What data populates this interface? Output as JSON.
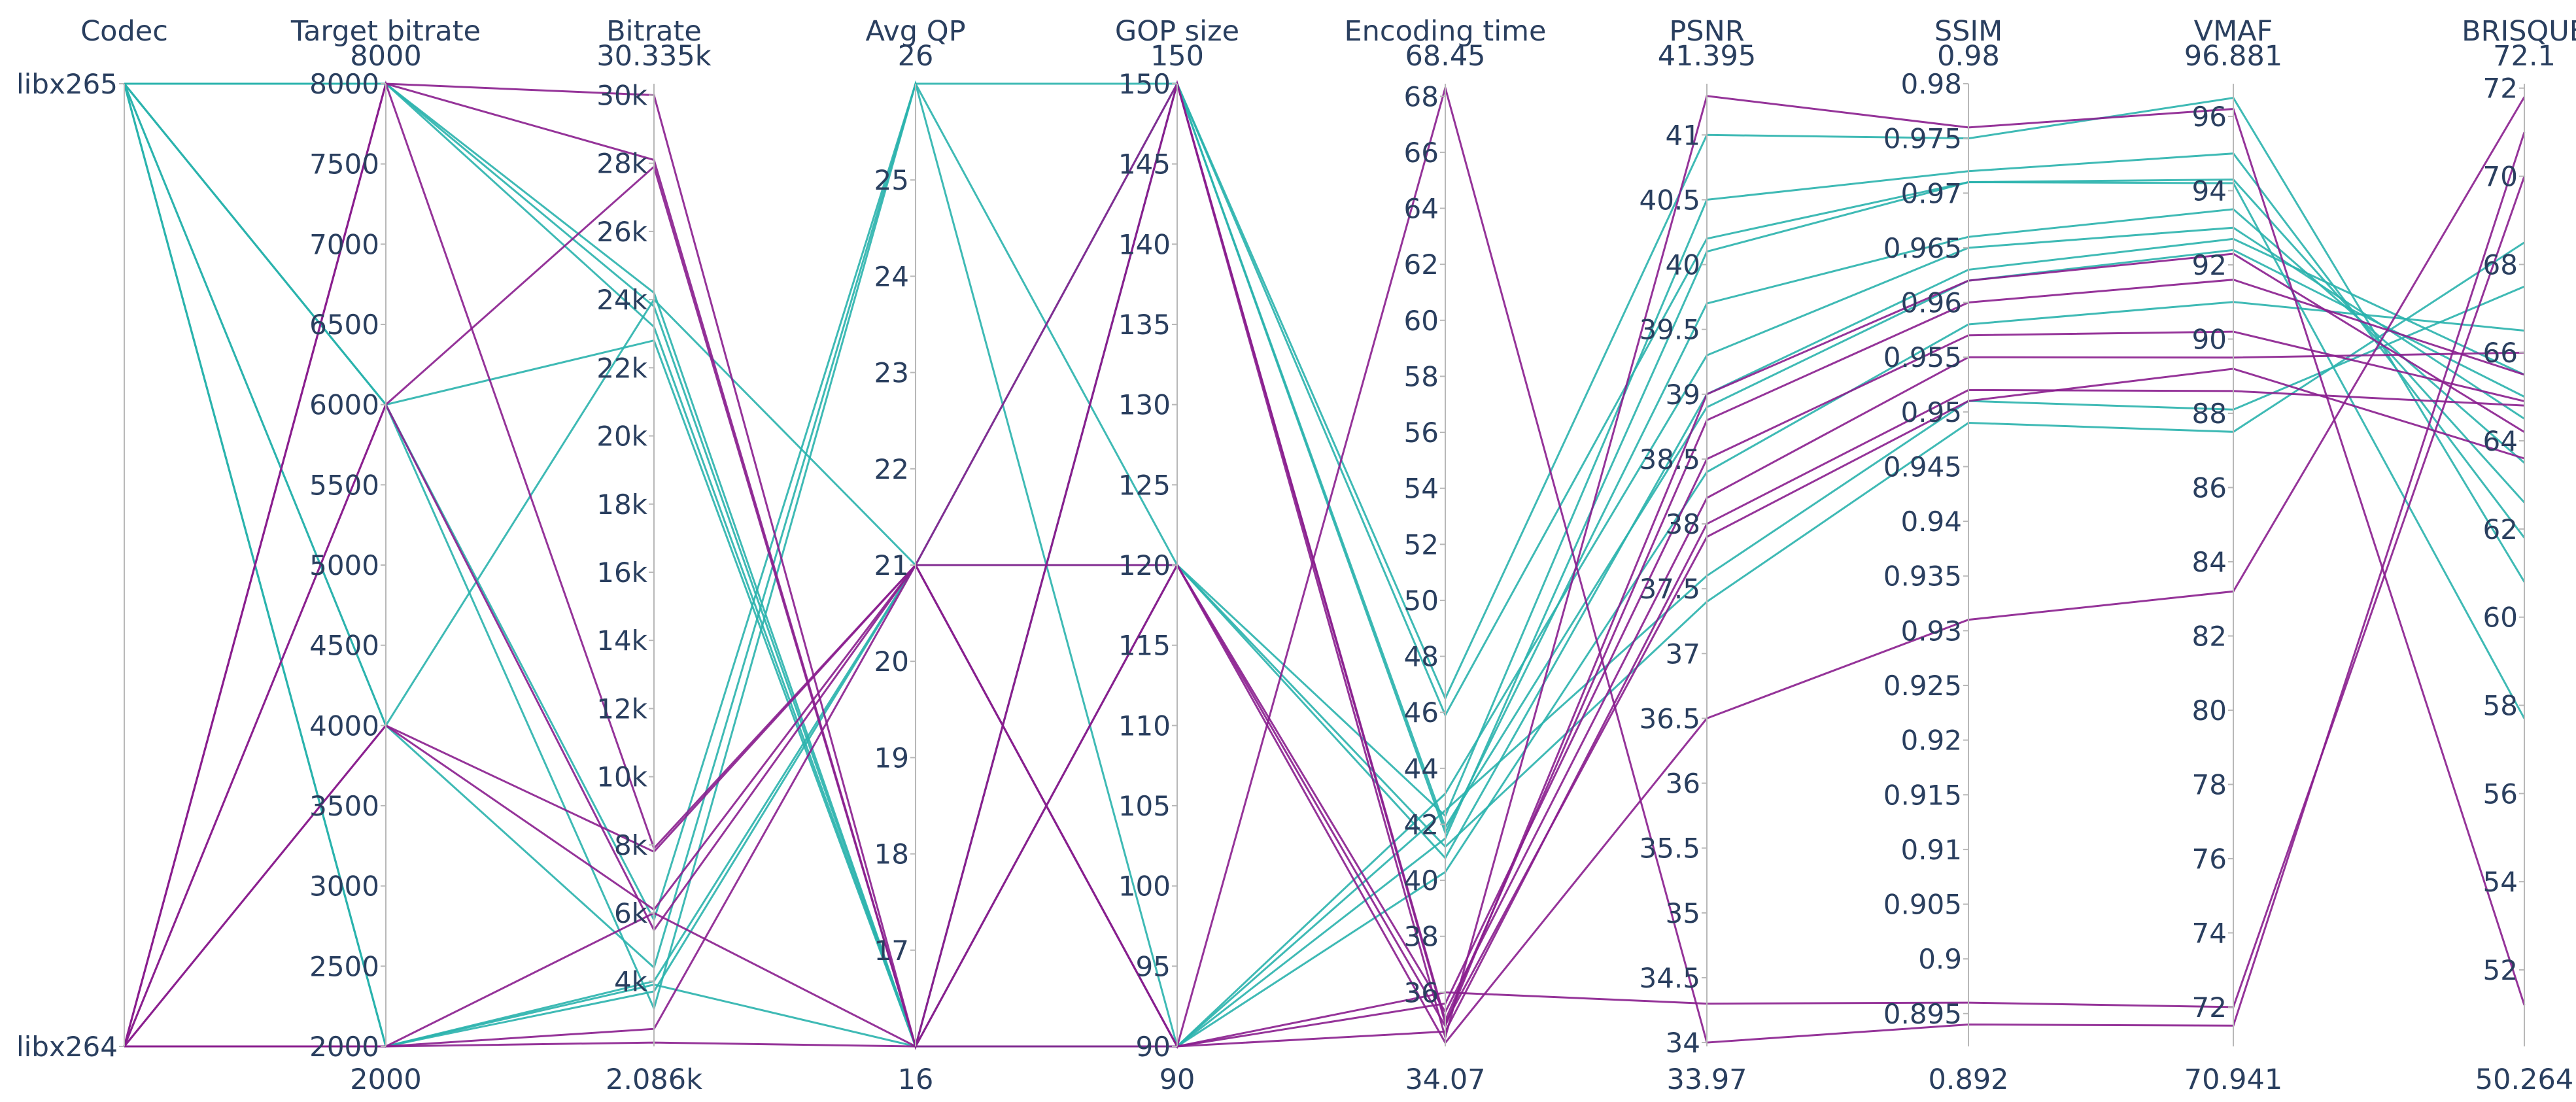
{
  "colors": {
    "libx265": "#2ab3ad",
    "libx264": "#8a1e8e",
    "axis": "#b8b8b8",
    "text": "#2a3f5f"
  },
  "chart_data": {
    "type": "parallel_coordinates",
    "title": "",
    "axes": [
      {
        "key": "codec",
        "label": "Codec",
        "categorical": true,
        "range": [
          0,
          1
        ],
        "ticks": [
          {
            "v": 1,
            "t": "libx265"
          },
          {
            "v": 0,
            "t": "libx264"
          }
        ],
        "min_label": "",
        "max_label": ""
      },
      {
        "key": "target",
        "label": "Target bitrate",
        "range": [
          2000,
          8000
        ],
        "ticks": [
          {
            "v": 2000,
            "t": "2000"
          },
          {
            "v": 2500,
            "t": "2500"
          },
          {
            "v": 3000,
            "t": "3000"
          },
          {
            "v": 3500,
            "t": "3500"
          },
          {
            "v": 4000,
            "t": "4000"
          },
          {
            "v": 4500,
            "t": "4500"
          },
          {
            "v": 5000,
            "t": "5000"
          },
          {
            "v": 5500,
            "t": "5500"
          },
          {
            "v": 6000,
            "t": "6000"
          },
          {
            "v": 6500,
            "t": "6500"
          },
          {
            "v": 7000,
            "t": "7000"
          },
          {
            "v": 7500,
            "t": "7500"
          },
          {
            "v": 8000,
            "t": "8000"
          }
        ],
        "min_label": "2000",
        "max_label": "8000"
      },
      {
        "key": "bitrate",
        "label": "Bitrate",
        "range": [
          2086,
          30335
        ],
        "ticks": [
          {
            "v": 4000,
            "t": "4k"
          },
          {
            "v": 6000,
            "t": "6k"
          },
          {
            "v": 8000,
            "t": "8k"
          },
          {
            "v": 10000,
            "t": "10k"
          },
          {
            "v": 12000,
            "t": "12k"
          },
          {
            "v": 14000,
            "t": "14k"
          },
          {
            "v": 16000,
            "t": "16k"
          },
          {
            "v": 18000,
            "t": "18k"
          },
          {
            "v": 20000,
            "t": "20k"
          },
          {
            "v": 22000,
            "t": "22k"
          },
          {
            "v": 24000,
            "t": "24k"
          },
          {
            "v": 26000,
            "t": "26k"
          },
          {
            "v": 28000,
            "t": "28k"
          },
          {
            "v": 30000,
            "t": "30k"
          }
        ],
        "min_label": "2.086k",
        "max_label": "30.335k"
      },
      {
        "key": "qp",
        "label": "Avg QP",
        "range": [
          16,
          26
        ],
        "ticks": [
          {
            "v": 17,
            "t": "17"
          },
          {
            "v": 18,
            "t": "18"
          },
          {
            "v": 19,
            "t": "19"
          },
          {
            "v": 20,
            "t": "20"
          },
          {
            "v": 21,
            "t": "21"
          },
          {
            "v": 22,
            "t": "22"
          },
          {
            "v": 23,
            "t": "23"
          },
          {
            "v": 24,
            "t": "24"
          },
          {
            "v": 25,
            "t": "25"
          }
        ],
        "min_label": "16",
        "max_label": "26"
      },
      {
        "key": "gop",
        "label": "GOP size",
        "range": [
          90,
          150
        ],
        "ticks": [
          {
            "v": 90,
            "t": "90"
          },
          {
            "v": 95,
            "t": "95"
          },
          {
            "v": 100,
            "t": "100"
          },
          {
            "v": 105,
            "t": "105"
          },
          {
            "v": 110,
            "t": "110"
          },
          {
            "v": 115,
            "t": "115"
          },
          {
            "v": 120,
            "t": "120"
          },
          {
            "v": 125,
            "t": "125"
          },
          {
            "v": 130,
            "t": "130"
          },
          {
            "v": 135,
            "t": "135"
          },
          {
            "v": 140,
            "t": "140"
          },
          {
            "v": 145,
            "t": "145"
          },
          {
            "v": 150,
            "t": "150"
          }
        ],
        "min_label": "90",
        "max_label": "150"
      },
      {
        "key": "time",
        "label": "Encoding time",
        "range": [
          34.07,
          68.45
        ],
        "ticks": [
          {
            "v": 36,
            "t": "36"
          },
          {
            "v": 38,
            "t": "38"
          },
          {
            "v": 40,
            "t": "40"
          },
          {
            "v": 42,
            "t": "42"
          },
          {
            "v": 44,
            "t": "44"
          },
          {
            "v": 46,
            "t": "46"
          },
          {
            "v": 48,
            "t": "48"
          },
          {
            "v": 50,
            "t": "50"
          },
          {
            "v": 52,
            "t": "52"
          },
          {
            "v": 54,
            "t": "54"
          },
          {
            "v": 56,
            "t": "56"
          },
          {
            "v": 58,
            "t": "58"
          },
          {
            "v": 60,
            "t": "60"
          },
          {
            "v": 62,
            "t": "62"
          },
          {
            "v": 64,
            "t": "64"
          },
          {
            "v": 66,
            "t": "66"
          },
          {
            "v": 68,
            "t": "68"
          }
        ],
        "min_label": "34.07",
        "max_label": "68.45"
      },
      {
        "key": "psnr",
        "label": "PSNR",
        "range": [
          33.97,
          41.395
        ],
        "ticks": [
          {
            "v": 34,
            "t": "34"
          },
          {
            "v": 34.5,
            "t": "34.5"
          },
          {
            "v": 35,
            "t": "35"
          },
          {
            "v": 35.5,
            "t": "35.5"
          },
          {
            "v": 36,
            "t": "36"
          },
          {
            "v": 36.5,
            "t": "36.5"
          },
          {
            "v": 37,
            "t": "37"
          },
          {
            "v": 37.5,
            "t": "37.5"
          },
          {
            "v": 38,
            "t": "38"
          },
          {
            "v": 38.5,
            "t": "38.5"
          },
          {
            "v": 39,
            "t": "39"
          },
          {
            "v": 39.5,
            "t": "39.5"
          },
          {
            "v": 40,
            "t": "40"
          },
          {
            "v": 40.5,
            "t": "40.5"
          },
          {
            "v": 41,
            "t": "41"
          }
        ],
        "min_label": "33.97",
        "max_label": "41.395"
      },
      {
        "key": "ssim",
        "label": "SSIM",
        "range": [
          0.892,
          0.98
        ],
        "ticks": [
          {
            "v": 0.895,
            "t": "0.895"
          },
          {
            "v": 0.9,
            "t": "0.9"
          },
          {
            "v": 0.905,
            "t": "0.905"
          },
          {
            "v": 0.91,
            "t": "0.91"
          },
          {
            "v": 0.915,
            "t": "0.915"
          },
          {
            "v": 0.92,
            "t": "0.92"
          },
          {
            "v": 0.925,
            "t": "0.925"
          },
          {
            "v": 0.93,
            "t": "0.93"
          },
          {
            "v": 0.935,
            "t": "0.935"
          },
          {
            "v": 0.94,
            "t": "0.94"
          },
          {
            "v": 0.945,
            "t": "0.945"
          },
          {
            "v": 0.95,
            "t": "0.95"
          },
          {
            "v": 0.955,
            "t": "0.955"
          },
          {
            "v": 0.96,
            "t": "0.96"
          },
          {
            "v": 0.965,
            "t": "0.965"
          },
          {
            "v": 0.97,
            "t": "0.97"
          },
          {
            "v": 0.975,
            "t": "0.975"
          },
          {
            "v": 0.98,
            "t": "0.98"
          }
        ],
        "min_label": "0.892",
        "max_label": "0.98"
      },
      {
        "key": "vmaf",
        "label": "VMAF",
        "range": [
          70.941,
          96.881
        ],
        "ticks": [
          {
            "v": 72,
            "t": "72"
          },
          {
            "v": 74,
            "t": "74"
          },
          {
            "v": 76,
            "t": "76"
          },
          {
            "v": 78,
            "t": "78"
          },
          {
            "v": 80,
            "t": "80"
          },
          {
            "v": 82,
            "t": "82"
          },
          {
            "v": 84,
            "t": "84"
          },
          {
            "v": 86,
            "t": "86"
          },
          {
            "v": 88,
            "t": "88"
          },
          {
            "v": 90,
            "t": "90"
          },
          {
            "v": 92,
            "t": "92"
          },
          {
            "v": 94,
            "t": "94"
          },
          {
            "v": 96,
            "t": "96"
          }
        ],
        "min_label": "70.941",
        "max_label": "96.881"
      },
      {
        "key": "brisque",
        "label": "BRISQUE",
        "range": [
          50.264,
          72.1
        ],
        "ticks": [
          {
            "v": 52,
            "t": "52"
          },
          {
            "v": 54,
            "t": "54"
          },
          {
            "v": 56,
            "t": "56"
          },
          {
            "v": 58,
            "t": "58"
          },
          {
            "v": 60,
            "t": "60"
          },
          {
            "v": 62,
            "t": "62"
          },
          {
            "v": 64,
            "t": "64"
          },
          {
            "v": 66,
            "t": "66"
          },
          {
            "v": 68,
            "t": "68"
          },
          {
            "v": 70,
            "t": "70"
          },
          {
            "v": 72,
            "t": "72"
          }
        ],
        "min_label": "50.264",
        "max_label": "72.1"
      }
    ],
    "series_order": [
      "codec",
      "target",
      "bitrate",
      "qp",
      "gop",
      "time",
      "psnr",
      "ssim",
      "vmaf",
      "brisque"
    ],
    "records": [
      {
        "codec": "libx265",
        "target": 8000,
        "bitrate": 24200,
        "qp": 16,
        "gop": 150,
        "time": 46.5,
        "psnr": 41.0,
        "ssim": 0.975,
        "vmaf": 96.5,
        "brisque": 60.8
      },
      {
        "codec": "libx265",
        "target": 8000,
        "bitrate": 23800,
        "qp": 16,
        "gop": 120,
        "time": 42.3,
        "psnr": 40.5,
        "ssim": 0.972,
        "vmaf": 95.0,
        "brisque": 61.8
      },
      {
        "codec": "libx265",
        "target": 8000,
        "bitrate": 23200,
        "qp": 16,
        "gop": 90,
        "time": 41.5,
        "psnr": 40.1,
        "ssim": 0.971,
        "vmaf": 94.3,
        "brisque": 62.6
      },
      {
        "codec": "libx265",
        "target": 6000,
        "bitrate": 22800,
        "qp": 16,
        "gop": 150,
        "time": 45.9,
        "psnr": 40.2,
        "ssim": 0.971,
        "vmaf": 94.2,
        "brisque": 57.7
      },
      {
        "codec": "libx265",
        "target": 6000,
        "bitrate": 3200,
        "qp": 26,
        "gop": 150,
        "time": 41.7,
        "psnr": 39.7,
        "ssim": 0.966,
        "vmaf": 93.5,
        "brisque": 63.5
      },
      {
        "codec": "libx265",
        "target": 6000,
        "bitrate": 5800,
        "qp": 26,
        "gop": 90,
        "time": 43.1,
        "psnr": 39.3,
        "ssim": 0.965,
        "vmaf": 93.0,
        "brisque": 64.5
      },
      {
        "codec": "libx265",
        "target": 4000,
        "bitrate": 4400,
        "qp": 26,
        "gop": 120,
        "time": 40.8,
        "psnr": 39.0,
        "ssim": 0.963,
        "vmaf": 92.7,
        "brisque": 65.5
      },
      {
        "codec": "libx265",
        "target": 4000,
        "bitrate": 24000,
        "qp": 21,
        "gop": 150,
        "time": 41.9,
        "psnr": 38.9,
        "ssim": 0.962,
        "vmaf": 92.4,
        "brisque": 65.0
      },
      {
        "codec": "libx265",
        "target": 2000,
        "bitrate": 4000,
        "qp": 21,
        "gop": 90,
        "time": 40.3,
        "psnr": 38.4,
        "ssim": 0.958,
        "vmaf": 91.0,
        "brisque": 66.5
      },
      {
        "codec": "libx265",
        "target": 2000,
        "bitrate": 3900,
        "qp": 16,
        "gop": 90,
        "time": 42.5,
        "psnr": 37.6,
        "ssim": 0.951,
        "vmaf": 88.1,
        "brisque": 67.5
      },
      {
        "codec": "libx265",
        "target": 2000,
        "bitrate": 3700,
        "qp": 21,
        "gop": 120,
        "time": 41.2,
        "psnr": 37.4,
        "ssim": 0.949,
        "vmaf": 87.5,
        "brisque": 68.5
      },
      {
        "codec": "libx264",
        "target": 8000,
        "bitrate": 30000,
        "qp": 16,
        "gop": 150,
        "time": 34.4,
        "psnr": 41.3,
        "ssim": 0.976,
        "vmaf": 96.2,
        "brisque": 51.2
      },
      {
        "codec": "libx264",
        "target": 8000,
        "bitrate": 28100,
        "qp": 16,
        "gop": 120,
        "time": 34.8,
        "psnr": 39.0,
        "ssim": 0.962,
        "vmaf": 92.3,
        "brisque": 64.2
      },
      {
        "codec": "libx264",
        "target": 8000,
        "bitrate": 7900,
        "qp": 21,
        "gop": 90,
        "time": 35.6,
        "psnr": 38.5,
        "ssim": 0.957,
        "vmaf": 90.2,
        "brisque": 64.9
      },
      {
        "codec": "libx264",
        "target": 6000,
        "bitrate": 27900,
        "qp": 16,
        "gop": 150,
        "time": 35.0,
        "psnr": 38.8,
        "ssim": 0.96,
        "vmaf": 91.6,
        "brisque": 65.5
      },
      {
        "codec": "libx264",
        "target": 6000,
        "bitrate": 5500,
        "qp": 21,
        "gop": 120,
        "time": 35.3,
        "psnr": 38.2,
        "ssim": 0.955,
        "vmaf": 89.5,
        "brisque": 66.0
      },
      {
        "codec": "libx264",
        "target": 4000,
        "bitrate": 7800,
        "qp": 21,
        "gop": 90,
        "time": 34.6,
        "psnr": 38.0,
        "ssim": 0.952,
        "vmaf": 88.6,
        "brisque": 64.8
      },
      {
        "codec": "libx264",
        "target": 4000,
        "bitrate": 6100,
        "qp": 21,
        "gop": 150,
        "time": 34.9,
        "psnr": 37.9,
        "ssim": 0.951,
        "vmaf": 89.2,
        "brisque": 63.6
      },
      {
        "codec": "libx264",
        "target": 2000,
        "bitrate": 6000,
        "qp": 16,
        "gop": 120,
        "time": 34.2,
        "psnr": 36.5,
        "ssim": 0.931,
        "vmaf": 83.2,
        "brisque": 71.8
      },
      {
        "codec": "libx264",
        "target": 2000,
        "bitrate": 2600,
        "qp": 21,
        "gop": 90,
        "time": 68.3,
        "psnr": 34.0,
        "ssim": 0.894,
        "vmaf": 71.5,
        "brisque": 71.0
      },
      {
        "codec": "libx264",
        "target": 2000,
        "bitrate": 2200,
        "qp": 16,
        "gop": 90,
        "time": 36.0,
        "psnr": 34.3,
        "ssim": 0.896,
        "vmaf": 72.0,
        "brisque": 70.0
      }
    ]
  }
}
